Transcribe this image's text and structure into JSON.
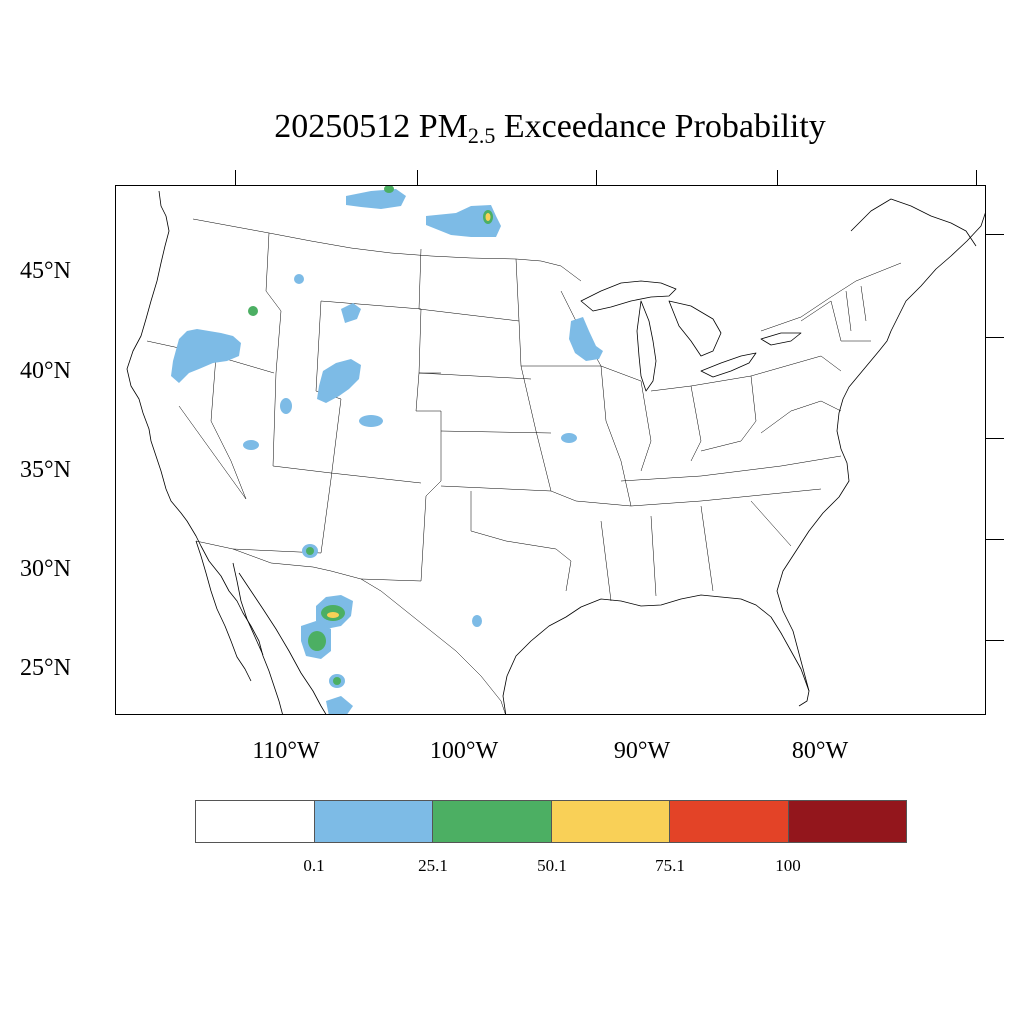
{
  "title": {
    "prefix": "20250512 PM",
    "subscript": "2.5",
    "suffix": " Exceedance Probability"
  },
  "lat_labels": [
    "45°N",
    "40°N",
    "35°N",
    "30°N",
    "25°N"
  ],
  "lon_labels": [
    "110°W",
    "100°W",
    "90°W",
    "80°W"
  ],
  "colorbar": {
    "colors": [
      "#ffffff",
      "#7dbbe6",
      "#4caf63",
      "#f9d057",
      "#e34327",
      "#93161c"
    ],
    "labels": [
      "0.1",
      "25.1",
      "50.1",
      "75.1",
      "100"
    ]
  },
  "map": {
    "region": "CONUS",
    "background_color": "#ffffff",
    "boundary_color": "#000000",
    "probability_areas": [
      {
        "level": "0.1-25",
        "color": "#7dbbe6",
        "location": "Northern Idaho / Montana border"
      },
      {
        "level": "25-50",
        "color": "#4caf63",
        "location": "Northern Idaho / Montana border"
      },
      {
        "level": "0.1-25",
        "color": "#7dbbe6",
        "location": "North Dakota / Manitoba border"
      },
      {
        "level": "50-75",
        "color": "#f9d057",
        "location": "North Dakota / Manitoba border"
      },
      {
        "level": "0.1-25",
        "color": "#7dbbe6",
        "location": "Northeast Oregon"
      },
      {
        "level": "0.1-25",
        "color": "#7dbbe6",
        "location": "Southwest Wyoming / Northern Utah"
      },
      {
        "level": "0.1-25",
        "color": "#7dbbe6",
        "location": "Minnesota / Wisconsin border"
      },
      {
        "level": "0.1-25",
        "color": "#7dbbe6",
        "location": "Northwest Mexico (Sonora / Chihuahua)"
      },
      {
        "level": "25-50",
        "color": "#4caf63",
        "location": "Northwest Mexico (Sonora / Chihuahua)"
      },
      {
        "level": "50-75",
        "color": "#f9d057",
        "location": "Northwest Mexico (Chihuahua)"
      }
    ]
  }
}
